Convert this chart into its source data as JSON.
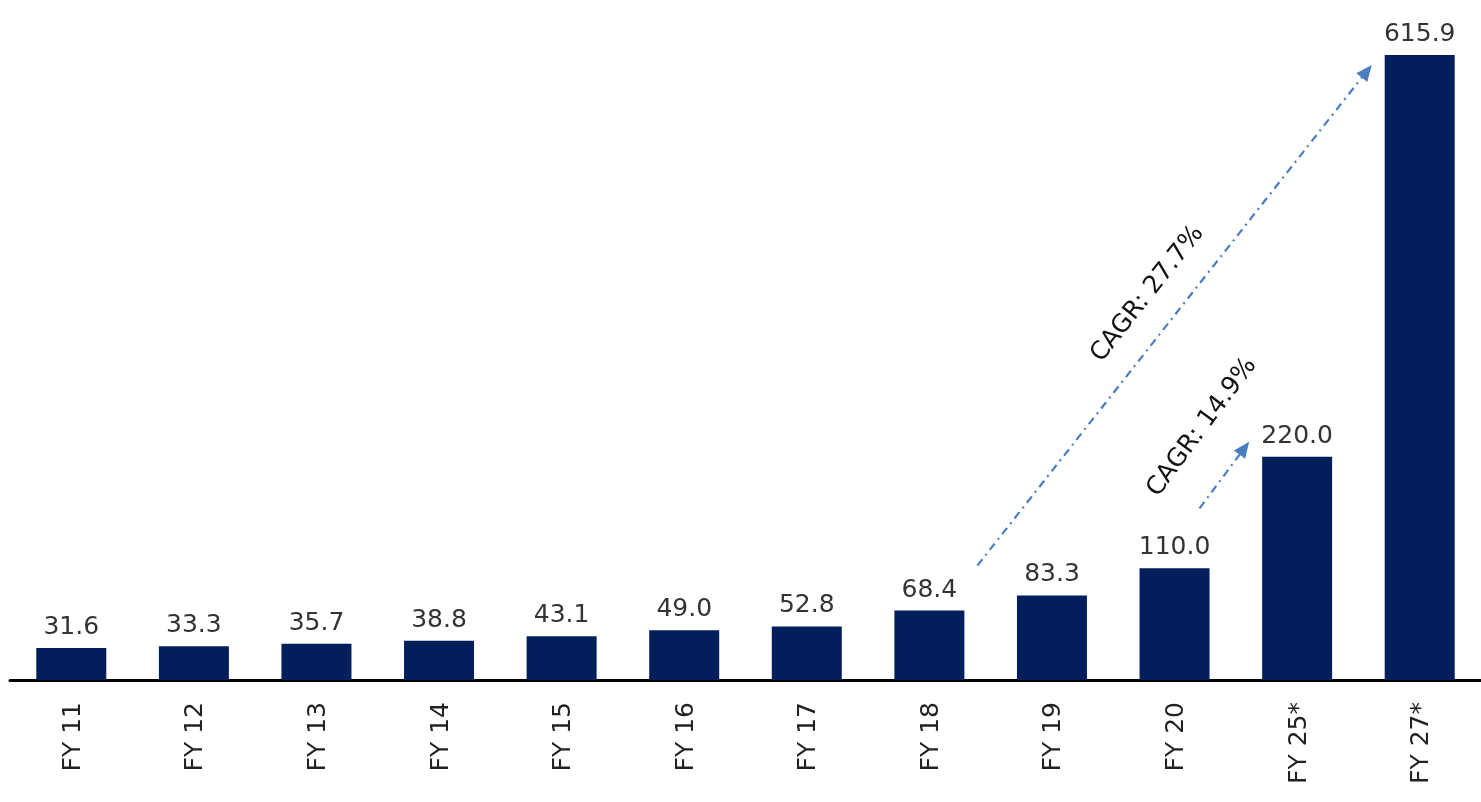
{
  "chart_data": {
    "type": "bar",
    "categories": [
      "FY 11",
      "FY 12",
      "FY 13",
      "FY 14",
      "FY 15",
      "FY 16",
      "FY 17",
      "FY 18",
      "FY 19",
      "FY 20",
      "FY 25*",
      "FY 27*"
    ],
    "values": [
      31.6,
      33.3,
      35.7,
      38.8,
      43.1,
      49.0,
      52.8,
      68.4,
      83.3,
      110.0,
      220.0,
      615.9
    ],
    "color": "#021f5c",
    "value_labels": [
      "31.6",
      "33.3",
      "35.7",
      "38.8",
      "43.1",
      "49.0",
      "52.8",
      "68.4",
      "83.3",
      "110.0",
      "220.0",
      "615.9"
    ],
    "grid": false,
    "tick_labels": "x",
    "annotations": [
      "CAGR: 27.7%",
      "CAGR: 14.9%"
    ]
  }
}
